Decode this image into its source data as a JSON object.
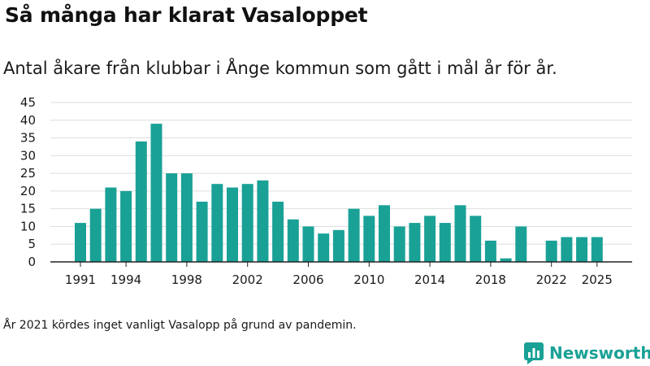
{
  "title": "Så många har klarat Vasaloppet",
  "subtitle": "Antal åkare från klubbar i Ånge kommun som gått i mål år för år.",
  "footnote": "År 2021 kördes inget vanligt Vasalopp på grund av pandemin.",
  "brand": {
    "name": "Newsworthy",
    "color": "#1aa196",
    "icon": "bar-chart-speech-icon"
  },
  "chart_data": {
    "type": "bar",
    "title": "Så många har klarat Vasaloppet",
    "xlabel": "",
    "ylabel": "",
    "color": "#1aa196",
    "ylim": [
      0,
      45
    ],
    "yticks": [
      0,
      5,
      10,
      15,
      20,
      25,
      30,
      35,
      40,
      45
    ],
    "xticks": [
      1991,
      1994,
      1998,
      2002,
      2006,
      2010,
      2014,
      2018,
      2022,
      2025
    ],
    "grid": true,
    "categories": [
      1991,
      1992,
      1993,
      1994,
      1995,
      1996,
      1997,
      1998,
      1999,
      2000,
      2001,
      2002,
      2003,
      2004,
      2005,
      2006,
      2007,
      2008,
      2009,
      2010,
      2011,
      2012,
      2013,
      2014,
      2015,
      2016,
      2017,
      2018,
      2019,
      2020,
      2021,
      2022,
      2023,
      2024,
      2025
    ],
    "values": [
      11,
      15,
      21,
      20,
      34,
      39,
      25,
      25,
      17,
      22,
      21,
      22,
      23,
      17,
      12,
      10,
      8,
      9,
      15,
      13,
      16,
      10,
      11,
      13,
      11,
      16,
      13,
      6,
      1,
      10,
      0,
      6,
      7,
      7,
      7
    ]
  }
}
